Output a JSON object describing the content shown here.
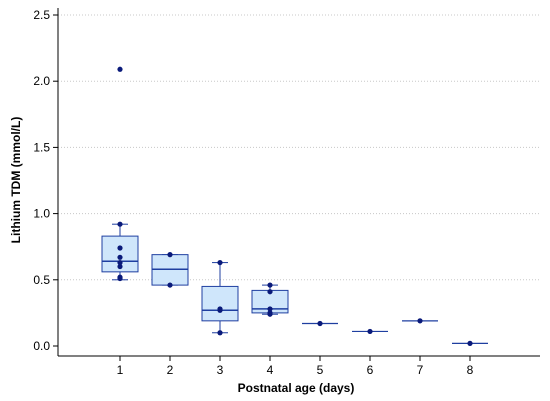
{
  "chart_data": {
    "type": "box",
    "xlabel": "Postnatal age (days)",
    "ylabel": "Lithium TDM (mmol/L)",
    "ylim": [
      0,
      2.5
    ],
    "xlim": [
      0,
      9
    ],
    "y_ticks": [
      "0.0",
      "0.5",
      "1.0",
      "1.5",
      "2.0",
      "2.5"
    ],
    "x_ticks": [
      "1",
      "2",
      "3",
      "4",
      "5",
      "6",
      "7",
      "8"
    ],
    "grid": "horizontal dotted",
    "colors": {
      "box_fill": "#cfe6fb",
      "box_stroke": "#1f3fa0",
      "point": "#0a1a7a",
      "grid": "#c8c8c8"
    },
    "groups": [
      {
        "day": 1,
        "q1": 0.56,
        "median": 0.64,
        "q3": 0.83,
        "whisker_low": 0.5,
        "whisker_high": 0.92,
        "points": [
          2.09,
          0.92,
          0.74,
          0.67,
          0.63,
          0.6,
          0.52,
          0.51
        ]
      },
      {
        "day": 2,
        "q1": 0.46,
        "median": 0.58,
        "q3": 0.69,
        "whisker_low": 0.46,
        "whisker_high": 0.69,
        "points": [
          0.69,
          0.46
        ]
      },
      {
        "day": 3,
        "q1": 0.19,
        "median": 0.27,
        "q3": 0.45,
        "whisker_low": 0.1,
        "whisker_high": 0.63,
        "points": [
          0.63,
          0.28,
          0.27,
          0.1
        ]
      },
      {
        "day": 4,
        "q1": 0.25,
        "median": 0.28,
        "q3": 0.42,
        "whisker_low": 0.24,
        "whisker_high": 0.46,
        "points": [
          0.46,
          0.41,
          0.28,
          0.25,
          0.24
        ]
      },
      {
        "day": 5,
        "median": 0.17,
        "points": [
          0.17
        ]
      },
      {
        "day": 6,
        "median": 0.11,
        "points": [
          0.11
        ]
      },
      {
        "day": 7,
        "median": 0.19,
        "points": [
          0.19
        ]
      },
      {
        "day": 8,
        "median": 0.02,
        "points": [
          0.02
        ]
      }
    ]
  }
}
